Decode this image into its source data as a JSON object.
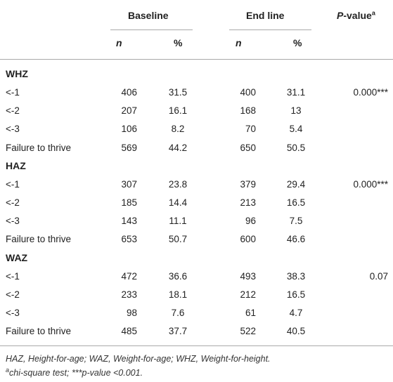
{
  "headers": {
    "baseline": "Baseline",
    "endline": "End line",
    "pvalue": "P",
    "pvalue_rest": "-value",
    "pvalue_sup": "a",
    "n": "n",
    "pct": "%"
  },
  "sections": [
    {
      "title": "WHZ",
      "rows": [
        {
          "label": "<-1",
          "bn": "406",
          "bp": "31.5",
          "en": "400",
          "ep": "31.1",
          "p": "0.000***"
        },
        {
          "label": "<-2",
          "bn": "207",
          "bp": "16.1",
          "en": "168",
          "ep": "13",
          "p": ""
        },
        {
          "label": "<-3",
          "bn": "106",
          "bp": "8.2",
          "en": "70",
          "ep": "5.4",
          "p": ""
        },
        {
          "label": "Failure to thrive",
          "bn": "569",
          "bp": "44.2",
          "en": "650",
          "ep": "50.5",
          "p": ""
        }
      ]
    },
    {
      "title": "HAZ",
      "rows": [
        {
          "label": "<-1",
          "bn": "307",
          "bp": "23.8",
          "en": "379",
          "ep": "29.4",
          "p": "0.000***"
        },
        {
          "label": "<-2",
          "bn": "185",
          "bp": "14.4",
          "en": "213",
          "ep": "16.5",
          "p": ""
        },
        {
          "label": "<-3",
          "bn": "143",
          "bp": "11.1",
          "en": "96",
          "ep": "7.5",
          "p": ""
        },
        {
          "label": "Failure to thrive",
          "bn": "653",
          "bp": "50.7",
          "en": "600",
          "ep": "46.6",
          "p": ""
        }
      ]
    },
    {
      "title": "WAZ",
      "rows": [
        {
          "label": "<-1",
          "bn": "472",
          "bp": "36.6",
          "en": "493",
          "ep": "38.3",
          "p": "0.07"
        },
        {
          "label": "<-2",
          "bn": "233",
          "bp": "18.1",
          "en": "212",
          "ep": "16.5",
          "p": ""
        },
        {
          "label": "<-3",
          "bn": "98",
          "bp": "7.6",
          "en": "61",
          "ep": "4.7",
          "p": ""
        },
        {
          "label": "Failure to thrive",
          "bn": "485",
          "bp": "37.7",
          "en": "522",
          "ep": "40.5",
          "p": ""
        }
      ]
    }
  ],
  "footnotes": {
    "line1": "HAZ, Height-for-age; WAZ, Weight-for-age; WHZ, Weight-for-height.",
    "line2_sup": "a",
    "line2": "chi-square test; ***p-value <0.001."
  }
}
